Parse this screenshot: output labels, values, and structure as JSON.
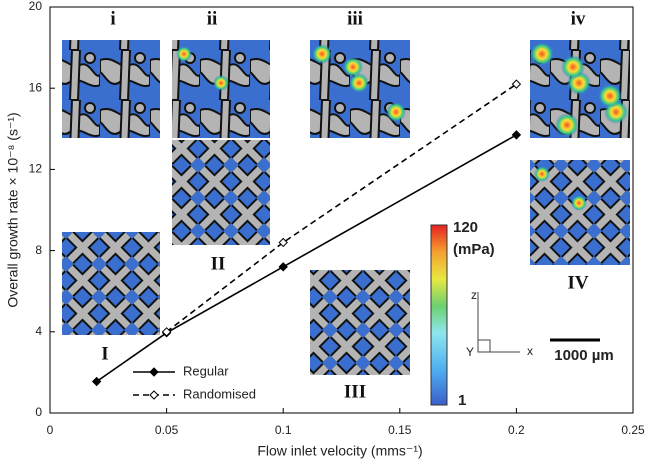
{
  "chart_data": {
    "type": "line",
    "x_label": "Flow inlet velocity (mms⁻¹)",
    "y_label": "Overall growth rate × 10⁻⁸ (s⁻¹)",
    "xlim": [
      0,
      0.25
    ],
    "xticks": [
      0,
      0.05,
      0.1,
      0.15,
      0.2,
      0.25
    ],
    "ylim": [
      0,
      20
    ],
    "yticks": [
      0,
      4,
      8,
      12,
      16,
      20
    ],
    "series": [
      {
        "name": "Regular",
        "color": "#000000",
        "line_style": "solid",
        "marker_fill": "#000000",
        "x": [
          0.02,
          0.05,
          0.1,
          0.2
        ],
        "values": [
          1.55,
          3.95,
          7.2,
          13.7
        ]
      },
      {
        "name": "Randomised",
        "color": "#000000",
        "line_style": "dashed",
        "marker_fill": "#ffffff",
        "x": [
          0.05,
          0.1,
          0.2
        ],
        "values": [
          4.0,
          8.4,
          16.2
        ]
      }
    ],
    "inset_labels": [
      "i",
      "ii",
      "iii",
      "iv",
      "I",
      "II",
      "III",
      "IV"
    ],
    "colorbar": {
      "max_label": "120",
      "unit": "(mPa)",
      "min_label": "1"
    },
    "axis_triad": [
      "z",
      "Y",
      "x"
    ],
    "scale_bar": "1000 µm"
  }
}
